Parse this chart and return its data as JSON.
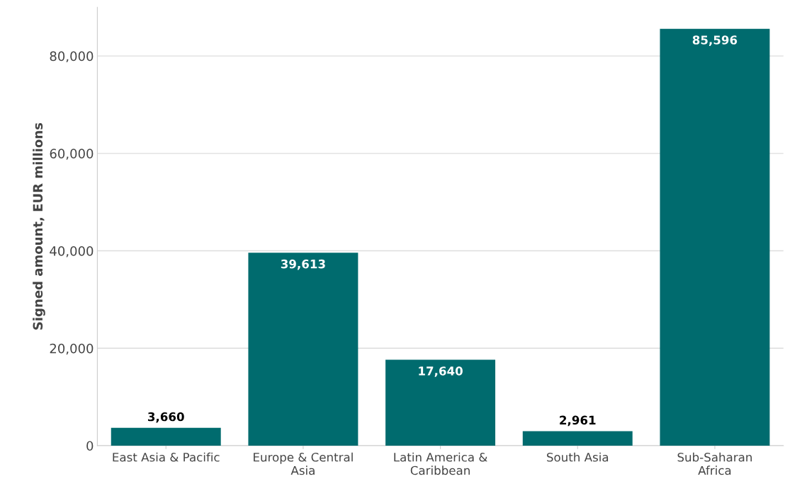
{
  "chart_data": {
    "type": "bar",
    "ylabel": "Signed amount, EUR millions",
    "categories": [
      "East Asia & Pacific",
      "Europe & Central\nAsia",
      "Latin America &\nCaribbean",
      "South Asia",
      "Sub-Saharan\nAfrica"
    ],
    "values": [
      3660,
      39613,
      17640,
      2961,
      85596
    ],
    "color": "#006b6e",
    "ylim": [
      0,
      90000
    ],
    "yticks": [
      {
        "value": 0,
        "label": "0"
      },
      {
        "value": 20000,
        "label": "20,000"
      },
      {
        "value": 40000,
        "label": "40,000"
      },
      {
        "value": 60000,
        "label": "60,000"
      },
      {
        "value": 80000,
        "label": "80,000"
      }
    ],
    "value_labels": [
      "3,660",
      "39,613",
      "17,640",
      "2,961",
      "85,596"
    ],
    "grid": "y",
    "legend": false
  }
}
